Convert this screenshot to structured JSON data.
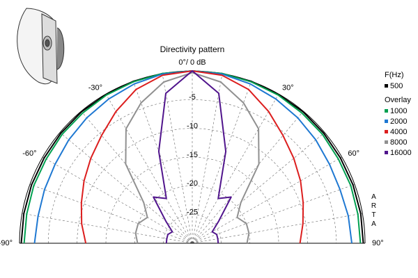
{
  "chart_data": {
    "type": "polar",
    "title": "Directivity pattern",
    "angles": [
      -90,
      -80,
      -70,
      -60,
      -50,
      -40,
      -30,
      -20,
      -10,
      0,
      10,
      20,
      30,
      40,
      50,
      60,
      70,
      80,
      90
    ],
    "rlim": [
      -30,
      0
    ],
    "rticks": [
      -5,
      -10,
      -15,
      -20,
      -25
    ],
    "thetaticks": [
      {
        "value": -90,
        "label": "-90°"
      },
      {
        "value": -60,
        "label": "-60°"
      },
      {
        "value": -30,
        "label": "-30°"
      },
      {
        "value": 0,
        "label": "0°/ 0 dB"
      },
      {
        "value": 30,
        "label": "30°"
      },
      {
        "value": 60,
        "label": "60°"
      },
      {
        "value": 90,
        "label": "90°"
      }
    ],
    "legend_title": "F(Hz)",
    "legend_group": "Overlay",
    "watermark": "ARTA",
    "series": [
      {
        "name": "500",
        "color": "#000000",
        "values": [
          -0.3,
          -0.3,
          -0.3,
          -0.3,
          -0.2,
          -0.1,
          -0.1,
          0,
          0,
          0,
          0,
          0,
          -0.1,
          -0.1,
          -0.2,
          -0.3,
          -0.3,
          -0.3,
          -0.3
        ]
      },
      {
        "name": "1000",
        "color": "#00a050",
        "values": [
          -0.8,
          -0.8,
          -0.7,
          -0.7,
          -0.5,
          -0.4,
          -0.2,
          -0.1,
          0,
          0,
          0,
          -0.1,
          -0.2,
          -0.4,
          -0.5,
          -0.7,
          -0.7,
          -0.8,
          -0.8
        ]
      },
      {
        "name": "2000",
        "color": "#1e78d2",
        "values": [
          -2.6,
          -2.8,
          -2.7,
          -2.5,
          -2,
          -1.5,
          -1,
          -0.5,
          -0.1,
          0,
          -0.1,
          -0.5,
          -1,
          -1.5,
          -2,
          -2.5,
          -2.7,
          -2.5,
          -2.3
        ]
      },
      {
        "name": "4000",
        "color": "#dc1e1e",
        "values": [
          -11.5,
          -10.5,
          -9.5,
          -8.3,
          -7,
          -5.5,
          -3.5,
          -1.5,
          -0.3,
          0,
          -0.3,
          -1.5,
          -3.5,
          -5.5,
          -7,
          -8.3,
          -9.5,
          -10.5,
          -11.3
        ]
      },
      {
        "name": "8000",
        "color": "#909090",
        "values": [
          -20.5,
          -20,
          -20,
          -21,
          -19,
          -12,
          -7,
          -4,
          -1.5,
          -0.3,
          -1.5,
          -4,
          -7,
          -12,
          -19,
          -21,
          -20,
          -20,
          -20.5
        ]
      },
      {
        "name": "16000",
        "color": "#50148c",
        "values": [
          -25.5,
          -25.5,
          -25.5,
          -26,
          -24,
          -19.5,
          -21,
          -13,
          -3.5,
          0,
          -3.5,
          -13,
          -21,
          -19.5,
          -24,
          -26,
          -25.5,
          -25.5,
          -25.5
        ]
      }
    ]
  }
}
